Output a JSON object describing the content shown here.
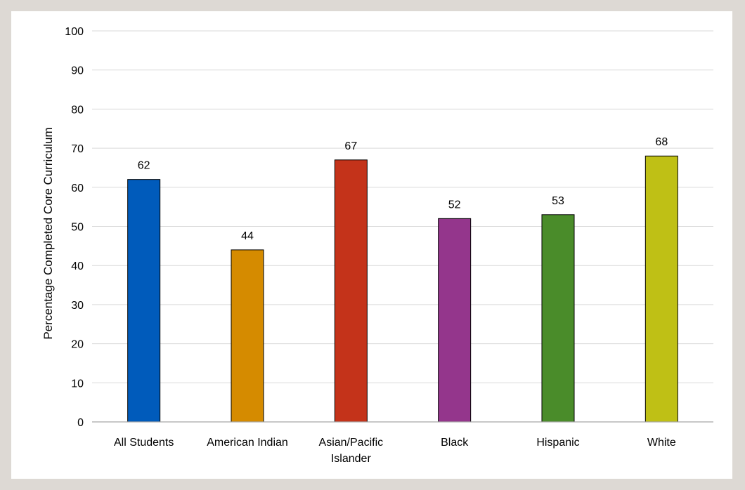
{
  "chart_data": {
    "type": "bar",
    "title": "",
    "xlabel": "",
    "ylabel": "Percentage Completed Core Curriculum",
    "ylim": [
      0,
      100
    ],
    "yticks": [
      0,
      10,
      20,
      30,
      40,
      50,
      60,
      70,
      80,
      90,
      100
    ],
    "grid": true,
    "legend": "none",
    "categories": [
      [
        "All Students"
      ],
      [
        "American Indian"
      ],
      [
        "Asian/Pacific",
        "Islander"
      ],
      [
        "Black"
      ],
      [
        "Hispanic"
      ],
      [
        "White"
      ]
    ],
    "values": [
      62,
      44,
      67,
      52,
      53,
      68
    ],
    "colors": [
      "#005bbb",
      "#d58b00",
      "#c4331a",
      "#94368c",
      "#4a8c2a",
      "#bfc015"
    ],
    "data_labels": [
      "62",
      "44",
      "67",
      "52",
      "53",
      "68"
    ]
  }
}
